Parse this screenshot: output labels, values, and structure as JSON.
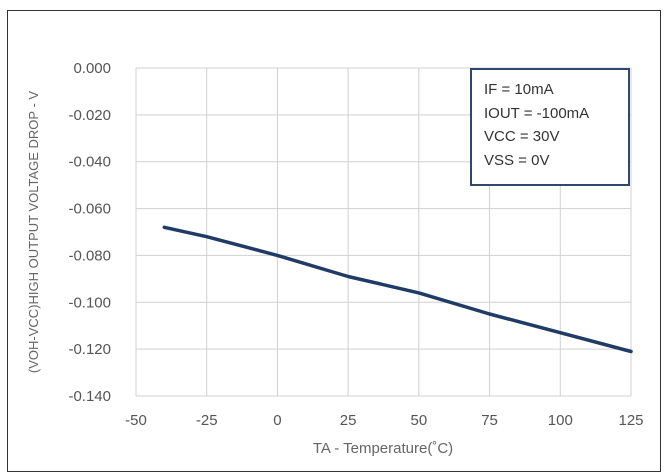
{
  "chart_data": {
    "type": "line",
    "title": "",
    "xlabel": "TA - Temperature(˚C)",
    "ylabel": "(VOH-VCC)HIGH OUTPUT VOLTAGE DROP - V",
    "xlim": [
      -50,
      125
    ],
    "ylim": [
      -0.14,
      0.0
    ],
    "grid": true,
    "x_ticks": [
      "-50",
      "-25",
      "0",
      "25",
      "50",
      "75",
      "100",
      "125"
    ],
    "y_ticks": [
      "0.000",
      "-0.020",
      "-0.040",
      "-0.060",
      "-0.080",
      "-0.100",
      "-0.120",
      "-0.140"
    ],
    "series": [
      {
        "name": "VOH-VCC",
        "color": "#1f3b66",
        "x": [
          -40,
          -25,
          0,
          25,
          50,
          75,
          100,
          125
        ],
        "y": [
          -0.068,
          -0.072,
          -0.08,
          -0.089,
          -0.096,
          -0.105,
          -0.113,
          -0.121
        ]
      }
    ],
    "legend": {
      "placement": "top-right",
      "lines": [
        "IF = 10mA",
        "IOUT = -100mA",
        "VCC = 30V",
        "VSS = 0V"
      ]
    }
  }
}
